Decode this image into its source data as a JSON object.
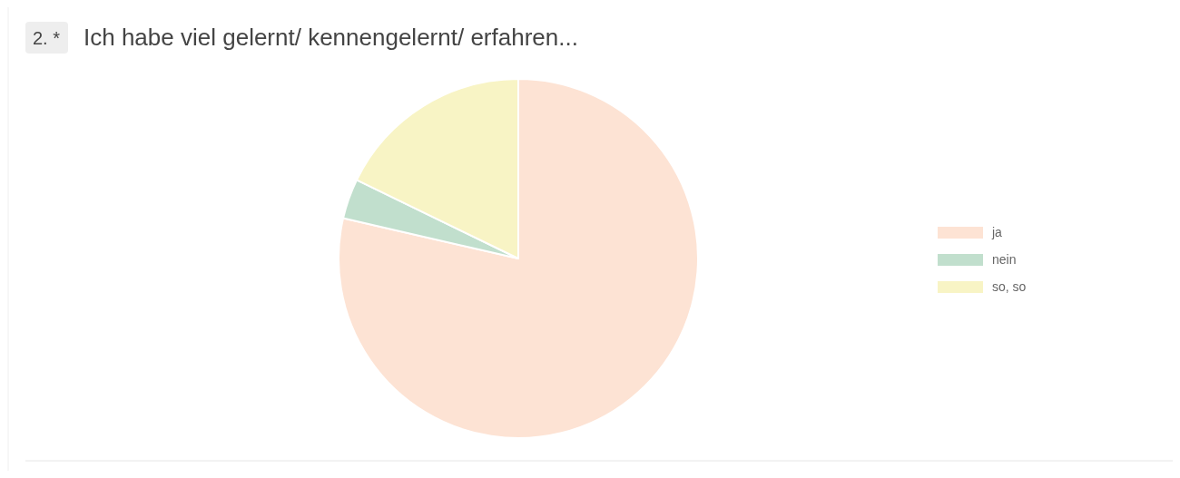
{
  "chart_data": {
    "type": "pie",
    "title": "Ich habe viel gelernt/ kennengelernt/ erfahren...",
    "annotations": [
      "2. *"
    ],
    "categories": [
      "ja",
      "nein",
      "so, so"
    ],
    "values": [
      78.6,
      3.6,
      17.8
    ],
    "colors": [
      "#fde3d4",
      "#c1dfcd",
      "#f8f4c5"
    ],
    "legend": "right"
  }
}
